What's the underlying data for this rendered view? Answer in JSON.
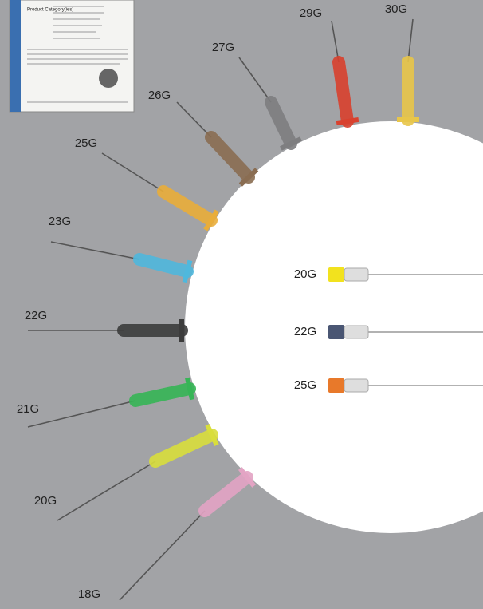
{
  "certificate": {
    "heading": "Product Category(ies)"
  },
  "fan_needles": [
    {
      "label": "30G"
    },
    {
      "label": "29G"
    },
    {
      "label": "27G"
    },
    {
      "label": "26G"
    },
    {
      "label": "25G"
    },
    {
      "label": "23G"
    },
    {
      "label": "22G"
    },
    {
      "label": "21G"
    },
    {
      "label": "20G"
    },
    {
      "label": "18G"
    }
  ],
  "spinal_needles": [
    {
      "label": "20G"
    },
    {
      "label": "22G"
    },
    {
      "label": "25G"
    }
  ]
}
